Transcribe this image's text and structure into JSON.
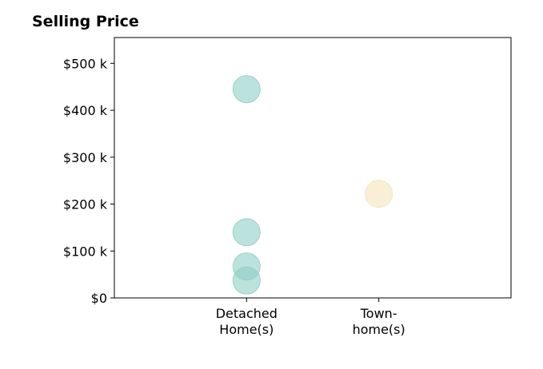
{
  "chart_data": {
    "type": "scatter",
    "title": "Selling Price",
    "xlabel": "",
    "ylabel": "",
    "categories": [
      [
        "Detached",
        "Home(s)"
      ],
      [
        "Town-",
        "home(s)"
      ]
    ],
    "y_ticks": [
      {
        "value": 0,
        "label": "$0"
      },
      {
        "value": 100000,
        "label": "$100 k"
      },
      {
        "value": 200000,
        "label": "$200 k"
      },
      {
        "value": 300000,
        "label": "$300 k"
      },
      {
        "value": 400000,
        "label": "$400 k"
      },
      {
        "value": 500000,
        "label": "$500 k"
      }
    ],
    "ylim": [
      0,
      555000
    ],
    "x_range": [
      -1,
      2
    ],
    "grid": false,
    "series": [
      {
        "category_index": 0,
        "color": "#8fcfc6",
        "values": [
          445000,
          140000,
          67000,
          37000
        ]
      },
      {
        "category_index": 1,
        "color": "#f5e3ba",
        "values": [
          222000
        ]
      }
    ]
  }
}
